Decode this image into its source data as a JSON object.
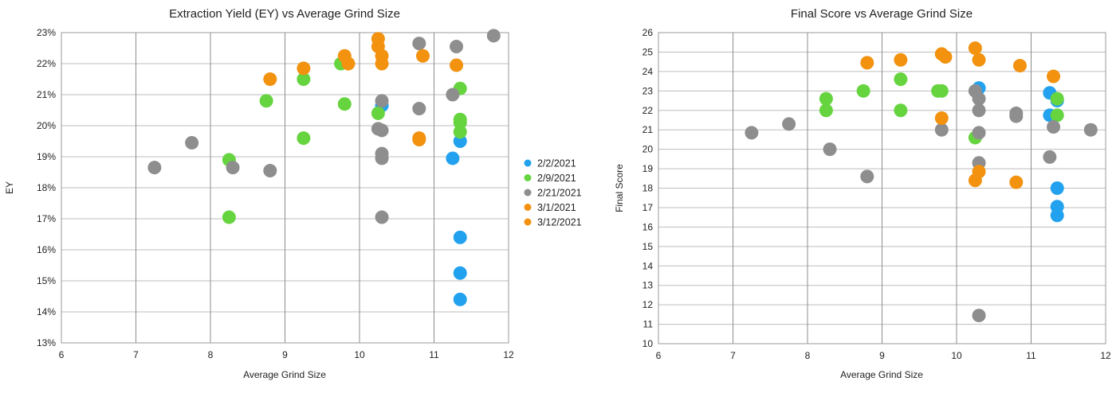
{
  "series_meta": [
    {
      "name": "2/2/2021",
      "color": "#22a2ee"
    },
    {
      "name": "2/9/2021",
      "color": "#66d43f"
    },
    {
      "name": "2/21/2021",
      "color": "#8e8e8e"
    },
    {
      "name": "3/1/2021",
      "color": "#f2920f"
    },
    {
      "name": "3/12/2021",
      "color": "#f2920f"
    }
  ],
  "chart_data": [
    {
      "type": "scatter",
      "title": "Extraction Yield (EY) vs Average Grind Size",
      "xlabel": "Average Grind Size",
      "ylabel": "EY",
      "xlim": [
        6,
        12
      ],
      "ylim": [
        13,
        23
      ],
      "y_unit": "%",
      "xticks": [
        "6",
        "7",
        "8",
        "9",
        "10",
        "11",
        "12"
      ],
      "yticks": [
        "13%",
        "14%",
        "15%",
        "16%",
        "17%",
        "18%",
        "19%",
        "20%",
        "21%",
        "22%",
        "23%"
      ],
      "grid": true,
      "legend": "right",
      "series": [
        {
          "name": "2/2/2021",
          "x": [
            10.3,
            11.25,
            11.35,
            11.35,
            11.35,
            11.35
          ],
          "y": [
            20.65,
            18.95,
            19.5,
            16.4,
            15.25,
            14.4
          ]
        },
        {
          "name": "2/9/2021",
          "x": [
            8.25,
            8.25,
            8.75,
            9.25,
            9.25,
            9.75,
            9.8,
            10.25,
            11.35,
            11.35,
            11.35,
            11.35
          ],
          "y": [
            18.9,
            17.05,
            20.8,
            21.5,
            19.6,
            22.0,
            20.7,
            20.4,
            21.2,
            20.2,
            20.1,
            19.8
          ]
        },
        {
          "name": "2/21/2021",
          "x": [
            7.25,
            7.75,
            8.3,
            8.8,
            10.25,
            10.3,
            10.3,
            10.3,
            10.3,
            10.3,
            10.8,
            10.8,
            11.25,
            11.3,
            11.8
          ],
          "y": [
            18.65,
            19.45,
            18.65,
            18.55,
            19.9,
            19.85,
            20.8,
            19.1,
            18.95,
            17.05,
            22.65,
            20.55,
            21.0,
            22.55,
            22.9
          ]
        },
        {
          "name": "3/1/2021",
          "x": [
            8.8,
            9.25,
            9.8,
            10.25,
            10.25,
            10.3,
            10.3,
            10.8
          ],
          "y": [
            21.5,
            21.85,
            22.25,
            22.8,
            22.55,
            22.25,
            22.0,
            19.6
          ]
        },
        {
          "name": "3/12/2021",
          "x": [
            9.85,
            10.8,
            10.85,
            11.3
          ],
          "y": [
            22.0,
            19.55,
            22.25,
            21.95
          ]
        }
      ]
    },
    {
      "type": "scatter",
      "title": "Final Score vs Average Grind Size",
      "xlabel": "Average Grind Size",
      "ylabel": "Final Score",
      "xlim": [
        6,
        12
      ],
      "ylim": [
        10,
        26
      ],
      "xticks": [
        "6",
        "7",
        "8",
        "9",
        "10",
        "11",
        "12"
      ],
      "yticks": [
        "10",
        "11",
        "12",
        "13",
        "14",
        "15",
        "16",
        "17",
        "18",
        "19",
        "20",
        "21",
        "22",
        "23",
        "24",
        "25",
        "26"
      ],
      "grid": true,
      "series": [
        {
          "name": "2/2/2021",
          "x": [
            10.3,
            11.25,
            11.25,
            11.35,
            11.35,
            11.35,
            11.35
          ],
          "y": [
            23.15,
            22.9,
            21.75,
            22.5,
            18.0,
            17.05,
            16.6
          ]
        },
        {
          "name": "2/9/2021",
          "x": [
            8.25,
            8.25,
            8.75,
            9.25,
            9.25,
            9.75,
            9.8,
            10.25,
            11.35,
            11.35
          ],
          "y": [
            22.6,
            22.0,
            23.0,
            23.6,
            22.0,
            23.0,
            23.0,
            20.6,
            22.6,
            21.75
          ]
        },
        {
          "name": "2/21/2021",
          "x": [
            7.25,
            7.75,
            8.3,
            8.8,
            9.8,
            10.25,
            10.3,
            10.3,
            10.3,
            10.3,
            10.3,
            10.8,
            10.8,
            11.25,
            11.3,
            11.8
          ],
          "y": [
            20.85,
            21.3,
            20.0,
            18.6,
            21.0,
            23.0,
            22.6,
            22.0,
            20.85,
            19.3,
            11.45,
            21.85,
            21.7,
            19.6,
            21.15,
            21.0
          ]
        },
        {
          "name": "3/1/2021",
          "x": [
            8.8,
            9.25,
            9.8,
            9.8,
            10.25,
            10.3,
            10.8
          ],
          "y": [
            24.45,
            24.6,
            24.9,
            21.6,
            25.2,
            24.6,
            18.3
          ]
        },
        {
          "name": "3/12/2021",
          "x": [
            9.85,
            10.25,
            10.3,
            10.85,
            11.3
          ],
          "y": [
            24.75,
            18.4,
            18.85,
            24.3,
            23.75
          ]
        }
      ]
    }
  ]
}
